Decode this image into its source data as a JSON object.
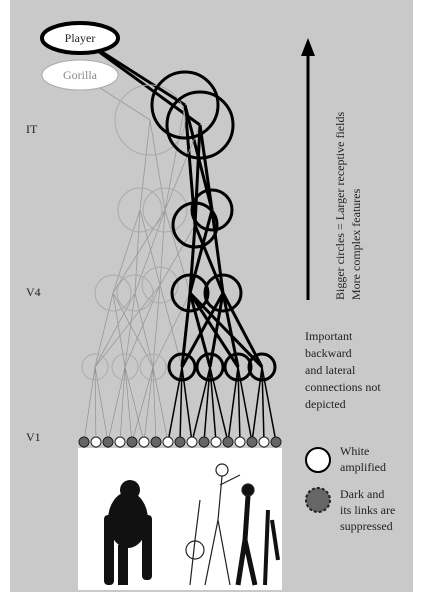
{
  "nodes": {
    "player": "Player",
    "gorilla": "Gorilla"
  },
  "layers": [
    "IT",
    "V4",
    "V1"
  ],
  "arrow": {
    "lines": [
      "Bigger circles = Larger receptive fields",
      "More complex features"
    ]
  },
  "note": [
    "Important",
    "backward",
    "and lateral",
    "connections not",
    "depicted"
  ],
  "legend": {
    "white": [
      "White",
      "amplified"
    ],
    "dark": [
      "Dark and",
      "its links are",
      "suppressed"
    ]
  }
}
